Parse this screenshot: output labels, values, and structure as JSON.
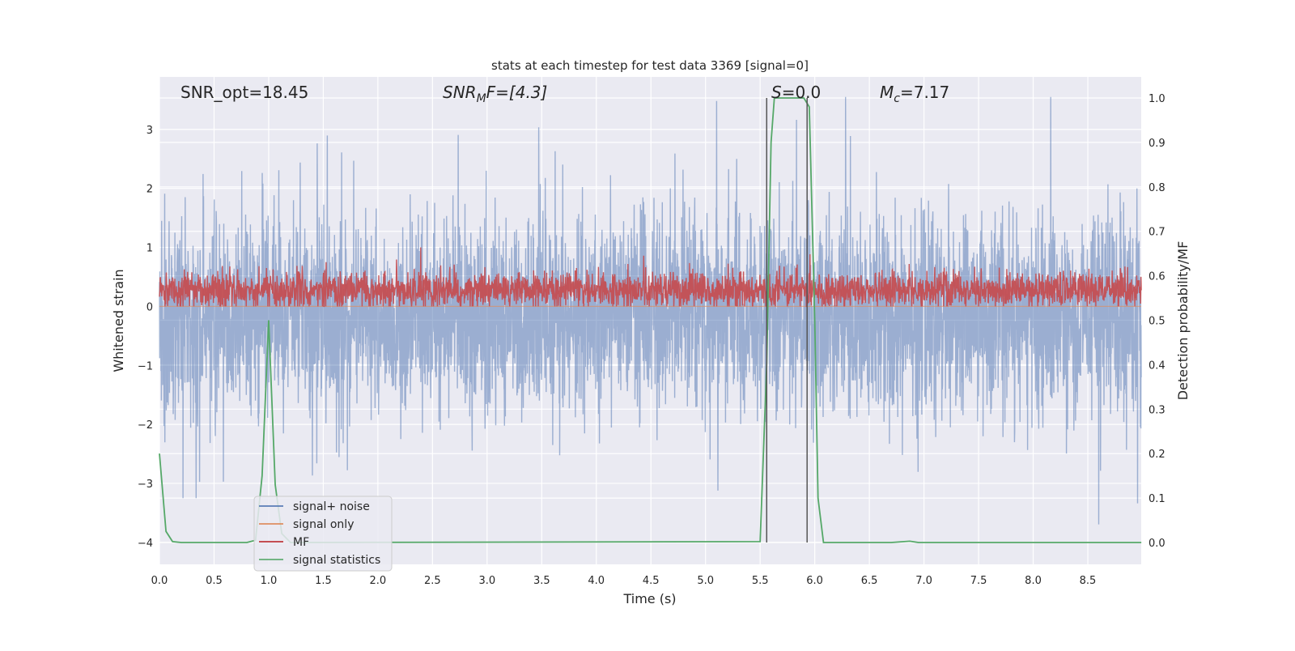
{
  "chart_data": {
    "type": "line",
    "title": "stats at each timestep for test data 3369 [signal=0]",
    "xlabel": "Time (s)",
    "ylabel": "Whitened strain",
    "ylabel_right": "Detection probability/MF",
    "xlim": [
      0,
      8.99
    ],
    "ylim": [
      -4.4,
      3.9
    ],
    "ylim_right": [
      -0.05,
      1.05
    ],
    "x_ticks": [
      "0.0",
      "0.5",
      "1.0",
      "1.5",
      "2.0",
      "2.5",
      "3.0",
      "3.5",
      "4.0",
      "4.5",
      "5.0",
      "5.5",
      "6.0",
      "6.5",
      "7.0",
      "7.5",
      "8.0",
      "8.5"
    ],
    "y_ticks": [
      "3",
      "2",
      "1",
      "0",
      "−1",
      "−2",
      "−3",
      "−4"
    ],
    "y_ticks_right": [
      "1.0",
      "0.9",
      "0.8",
      "0.7",
      "0.6",
      "0.5",
      "0.4",
      "0.3",
      "0.2",
      "0.1",
      "0.0"
    ],
    "grid": true,
    "legend_position": "lower-left",
    "annotations": {
      "snr_opt": "SNR_opt=18.45",
      "snr_mf_main": "SNR",
      "snr_mf_sub": "M",
      "snr_mf_rest": "F=[4.3]",
      "s_sym": "S",
      "s_val": "=0.0",
      "mc_sym": "M",
      "mc_sub": "c",
      "mc_val": "=7.17"
    },
    "series": [
      {
        "name": "signal+ noise",
        "color": "#4c72b0",
        "axis": "left",
        "kind": "noise",
        "n_points": 4500,
        "mean": -0.15,
        "std": 0.8,
        "min": -4.0,
        "max": 3.55
      },
      {
        "name": "signal only",
        "color": "#dd8452",
        "axis": "left",
        "kind": "flat",
        "value": 0
      },
      {
        "name": "MF",
        "color": "#c44e52",
        "axis": "left",
        "kind": "noise",
        "n_points": 3000,
        "mean": 0.28,
        "std": 0.15,
        "min": 0.0,
        "max": 1.0
      },
      {
        "name": "signal statistics",
        "color": "#55a868",
        "axis": "right",
        "x": [
          0,
          0.06,
          0.12,
          0.2,
          0.8,
          0.88,
          0.94,
          1.0,
          1.06,
          1.12,
          1.2,
          5.5,
          5.56,
          5.6,
          5.63,
          5.9,
          5.95,
          6.0,
          6.03,
          6.08,
          6.7,
          6.87,
          6.95,
          8.99
        ],
        "y": [
          0.2,
          0.025,
          0.002,
          0,
          0,
          0.005,
          0.15,
          0.5,
          0.13,
          0.02,
          0,
          0.002,
          0.4,
          0.9,
          1.0,
          1.0,
          0.98,
          0.5,
          0.1,
          0,
          0,
          0.003,
          0,
          0
        ]
      }
    ],
    "vlines": {
      "x": [
        5.56,
        5.93
      ],
      "color": "#555555",
      "range_right": [
        0,
        1
      ]
    }
  }
}
